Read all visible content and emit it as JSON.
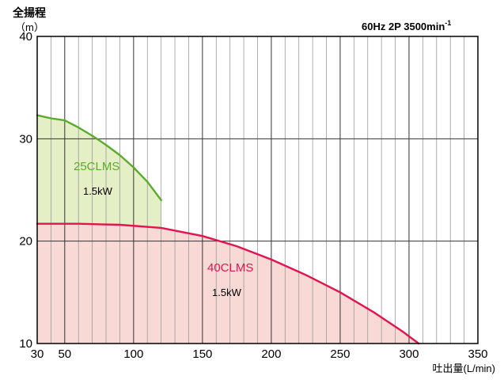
{
  "chart_data": {
    "type": "area",
    "ylabel": "全揚程",
    "yunit": "（m）",
    "xlabel": "吐出量(L/min)",
    "condition": {
      "base": "60Hz 2P 3500min",
      "superscript": "-1"
    },
    "xlim": [
      30,
      350
    ],
    "ylim": [
      10,
      40
    ],
    "x_ticks": [
      "30",
      "50",
      "100",
      "150",
      "200",
      "250",
      "300",
      "350"
    ],
    "x_tick_values": [
      30,
      50,
      100,
      150,
      200,
      250,
      300,
      350
    ],
    "y_ticks": [
      "40",
      "30",
      "20",
      "10"
    ],
    "y_tick_values": [
      40,
      30,
      20,
      10
    ],
    "minor_x_step": 10,
    "grid": true,
    "series": [
      {
        "name": "25CLMS",
        "power": "1.5kW",
        "line_color": "#5aaa2e",
        "fill_color": "#e5efc5",
        "x": [
          30,
          40,
          50,
          60,
          70,
          80,
          90,
          100,
          110,
          120
        ],
        "y": [
          32.3,
          32.0,
          31.8,
          31.1,
          30.3,
          29.4,
          28.4,
          27.2,
          25.8,
          24.0
        ]
      },
      {
        "name": "40CLMS",
        "power": "1.5kW",
        "line_color": "#e0154f",
        "fill_color": "#f8d9d6",
        "x": [
          30,
          60,
          90,
          120,
          150,
          175,
          200,
          225,
          250,
          275,
          295,
          307
        ],
        "y": [
          21.7,
          21.7,
          21.6,
          21.3,
          20.5,
          19.5,
          18.2,
          16.7,
          15.0,
          13.0,
          11.2,
          10.0
        ]
      }
    ]
  }
}
